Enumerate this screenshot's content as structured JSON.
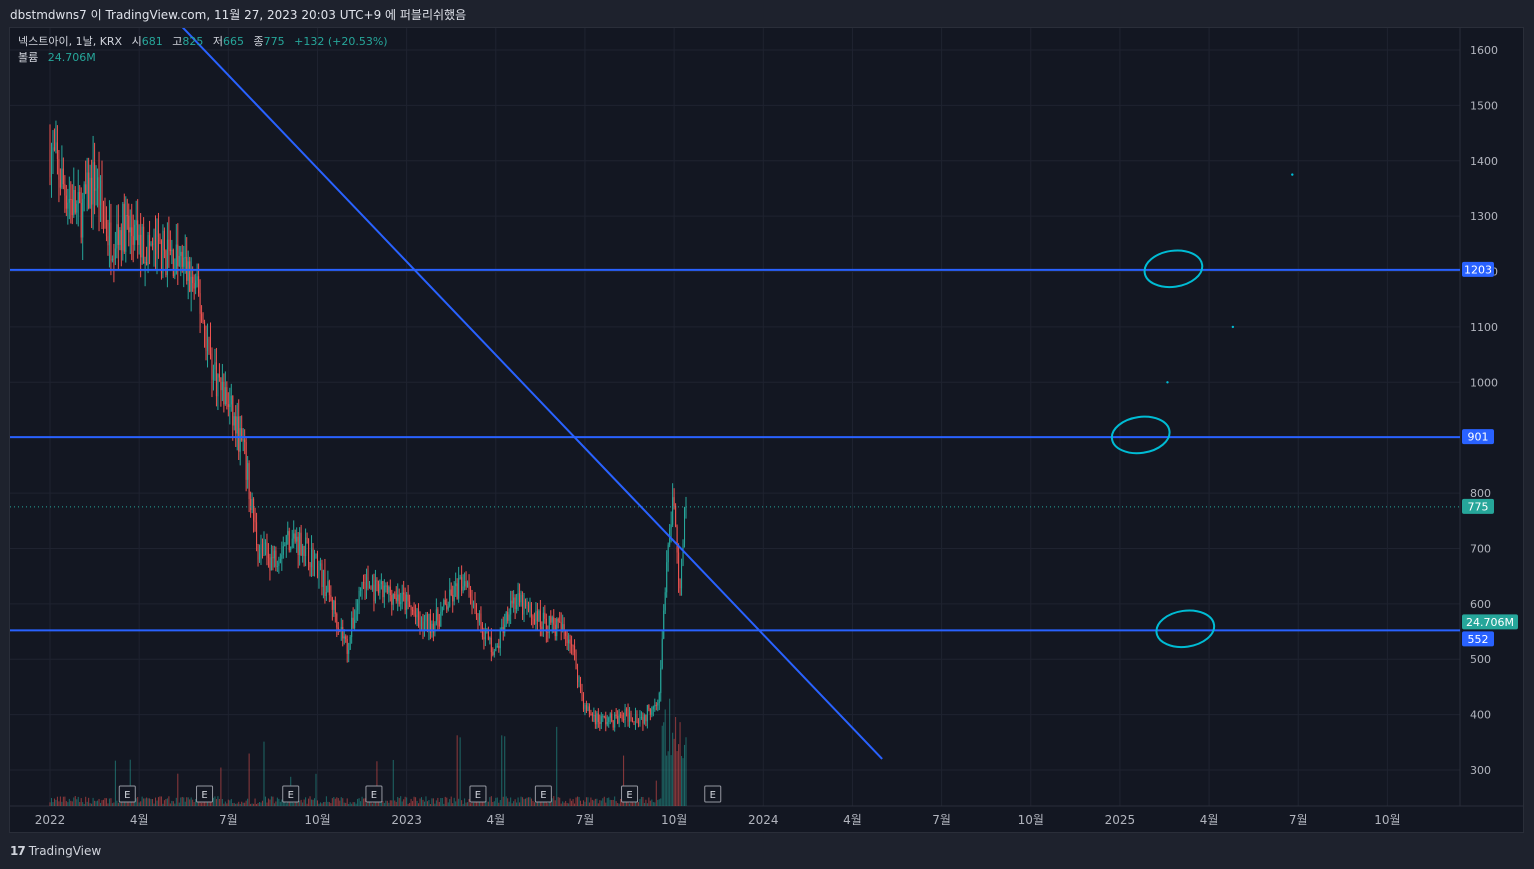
{
  "header": {
    "publish_text": "dbstmdwns7 이 TradingView.com, 11월 27, 2023 20:03 UTC+9 에 퍼블리쉬했음"
  },
  "legend": {
    "symbol": "넥스트아이, 1날, KRX",
    "open_label": "시",
    "open_value": "681",
    "high_label": "고",
    "high_value": "825",
    "low_label": "저",
    "low_value": "665",
    "close_label": "종",
    "close_value": "775",
    "change": "+132 (+20.53%)",
    "volume_label": "볼륨",
    "volume_value": "24.706M"
  },
  "footer": {
    "brand_logo": "17",
    "brand_name": "TradingView"
  },
  "colors": {
    "background": "#131722",
    "frame": "#1e222d",
    "up": "#26a69a",
    "down": "#ef5350",
    "trendline": "#2962ff",
    "annotation": "#00bcd4",
    "grid": "#1f2330"
  },
  "chart_data": {
    "type": "candlestick",
    "timeframe": "1D",
    "y_axis": {
      "ticks": [
        1600,
        1500,
        1400,
        1300,
        1200,
        1100,
        1000,
        900,
        800,
        700,
        600,
        500,
        400,
        300
      ],
      "ylim": [
        240,
        1620
      ]
    },
    "x_axis": {
      "ticks": [
        "2022",
        "4월",
        "7월",
        "10월",
        "2023",
        "4월",
        "7월",
        "10월",
        "2024",
        "4월",
        "7월",
        "10월",
        "2025",
        "4월",
        "7월",
        "10월"
      ]
    },
    "price_tags": [
      {
        "label": "1203",
        "value": 1203,
        "color": "#2962ff"
      },
      {
        "label": "901",
        "value": 901,
        "color": "#2962ff"
      },
      {
        "label": "775",
        "value": 775,
        "color": "#26a69a"
      },
      {
        "label": "24.706M",
        "value": 552,
        "color": "#26a69a"
      },
      {
        "label": "552",
        "value": 552,
        "color": "#2962ff"
      }
    ],
    "horizontal_lines": [
      1203,
      901,
      552
    ],
    "last_price": 775,
    "trendline": {
      "start": {
        "month_index": 4.3,
        "price": 1650
      },
      "end": {
        "month_index": 28.0,
        "price": 320
      }
    },
    "price_path": [
      [
        0,
        1420
      ],
      [
        0.5,
        1350
      ],
      [
        1,
        1300
      ],
      [
        1.5,
        1370
      ],
      [
        2,
        1260
      ],
      [
        2.5,
        1280
      ],
      [
        3,
        1250
      ],
      [
        3.5,
        1240
      ],
      [
        4,
        1230
      ],
      [
        4.5,
        1210
      ],
      [
        5,
        1150
      ],
      [
        5.5,
        1020
      ],
      [
        6,
        960
      ],
      [
        6.5,
        880
      ],
      [
        7,
        700
      ],
      [
        7.5,
        680
      ],
      [
        8,
        720
      ],
      [
        8.5,
        710
      ],
      [
        9,
        670
      ],
      [
        9.5,
        600
      ],
      [
        10,
        520
      ],
      [
        10.5,
        640
      ],
      [
        11,
        620
      ],
      [
        11.5,
        620
      ],
      [
        12,
        600
      ],
      [
        12.5,
        560
      ],
      [
        13,
        570
      ],
      [
        13.5,
        610
      ],
      [
        14,
        650
      ],
      [
        14.5,
        560
      ],
      [
        15,
        510
      ],
      [
        15.5,
        610
      ],
      [
        16,
        590
      ],
      [
        16.5,
        570
      ],
      [
        17,
        560
      ],
      [
        17.5,
        540
      ],
      [
        18,
        410
      ],
      [
        18.5,
        390
      ],
      [
        19,
        390
      ],
      [
        19.5,
        400
      ],
      [
        20,
        395
      ],
      [
        20.5,
        440
      ],
      [
        20.8,
        700
      ],
      [
        21.0,
        800
      ],
      [
        21.2,
        620
      ],
      [
        21.4,
        775
      ]
    ],
    "earnings_markers": {
      "label": "E",
      "month_indices": [
        2.6,
        5.2,
        8.1,
        10.9,
        14.4,
        16.6,
        19.5,
        22.3
      ]
    },
    "volume": {
      "last_value": "24.706M"
    },
    "annotations": [
      {
        "type": "ellipse",
        "price": 1205,
        "month_index": 37.8
      },
      {
        "type": "ellipse",
        "price": 905,
        "month_index": 36.7
      },
      {
        "type": "ellipse",
        "price": 555,
        "month_index": 38.2
      },
      {
        "type": "dot",
        "price": 1375,
        "month_index": 41.8
      },
      {
        "type": "dot",
        "price": 1100,
        "month_index": 39.8
      },
      {
        "type": "dot",
        "price": 1000,
        "month_index": 37.6
      }
    ]
  }
}
